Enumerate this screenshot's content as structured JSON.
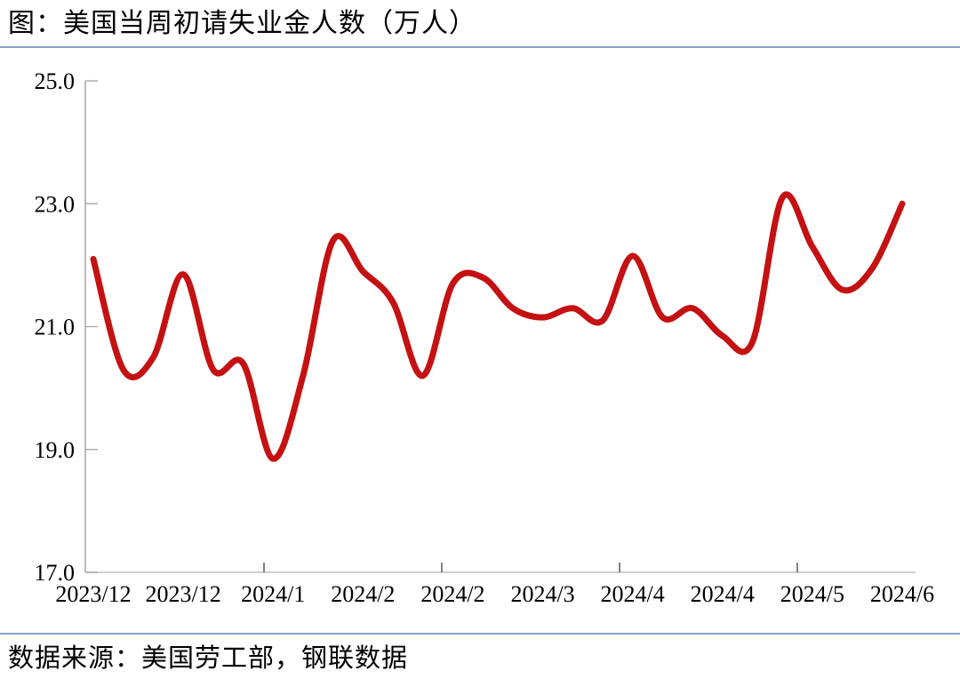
{
  "header": {
    "title": "图：美国当周初请失业金人数（万人）"
  },
  "footer": {
    "source": "数据来源：美国劳工部，钢联数据"
  },
  "colors": {
    "line_red": "#C41112",
    "separator_blue": "#8AA4C8",
    "y_axis_gray": "#9E9E9E",
    "x_axis_gray": "#C2C2C2",
    "y_tick_gray": "#A8A8A8",
    "x_tick_gray": "#636363",
    "text_black": "#000000",
    "background": "#FFFFFF"
  },
  "chart_data": {
    "type": "line",
    "title": "美国当周初请失业金人数（万人）",
    "unit": "万人",
    "smooth": true,
    "grid": false,
    "legend": "none",
    "line_color": "#C41112",
    "line_width": 7,
    "ylim": [
      17.0,
      25.0
    ],
    "y_ticks": [
      25.0,
      23.0,
      21.0,
      19.0,
      17.0
    ],
    "y_tick_labels": [
      "25.0",
      "23.0",
      "21.0",
      "19.0",
      "17.0"
    ],
    "x_tick_labels": [
      "2023/12",
      "2023/12",
      "2024/1",
      "2024/2",
      "2024/2",
      "2024/3",
      "2024/4",
      "2024/4",
      "2024/5",
      "2024/6"
    ],
    "x_label_every_n_points": 3,
    "x": [
      "2023/12/2",
      "2023/12/9",
      "2023/12/16",
      "2023/12/23",
      "2023/12/30",
      "2024/1/6",
      "2024/1/13",
      "2024/1/20",
      "2024/1/27",
      "2024/2/3",
      "2024/2/10",
      "2024/2/17",
      "2024/2/24",
      "2024/3/2",
      "2024/3/9",
      "2024/3/16",
      "2024/3/23",
      "2024/3/30",
      "2024/4/6",
      "2024/4/13",
      "2024/4/20",
      "2024/4/27",
      "2024/5/4",
      "2024/5/11",
      "2024/5/18",
      "2024/5/25",
      "2024/6/1",
      "2024/6/8"
    ],
    "values": [
      22.1,
      20.3,
      20.5,
      21.85,
      20.3,
      20.4,
      18.85,
      20.2,
      22.4,
      21.9,
      21.4,
      20.2,
      21.7,
      21.8,
      21.3,
      21.15,
      21.3,
      21.1,
      22.15,
      21.15,
      21.3,
      20.85,
      20.75,
      23.1,
      22.3,
      21.6,
      21.95,
      23.0
    ]
  }
}
